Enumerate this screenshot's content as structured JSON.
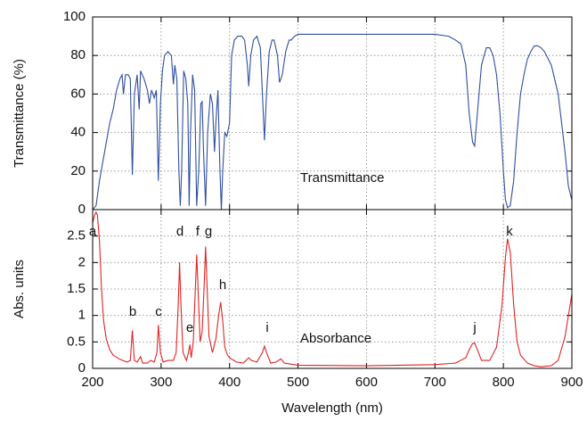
{
  "chart_data": [
    {
      "type": "line",
      "ylabel": "Transmittance (%)",
      "xlim": [
        200,
        900
      ],
      "ylim": [
        0,
        100
      ],
      "yticks": [
        0,
        20,
        40,
        60,
        80,
        100
      ],
      "grid": true,
      "x": [
        200,
        205,
        210,
        215,
        220,
        225,
        230,
        235,
        240,
        243,
        245,
        248,
        252,
        255,
        258,
        261,
        265,
        268,
        270,
        275,
        280,
        283,
        286,
        290,
        293,
        296,
        299,
        302,
        305,
        310,
        315,
        318,
        320,
        323,
        326,
        328,
        330,
        333,
        336,
        339,
        341,
        343,
        346,
        349,
        352,
        355,
        358,
        360,
        362,
        365,
        368,
        372,
        375,
        378,
        380,
        383,
        386,
        388,
        390,
        393,
        396,
        400,
        403,
        407,
        412,
        418,
        422,
        426,
        428,
        431,
        435,
        440,
        445,
        448,
        451,
        454,
        458,
        462,
        465,
        470,
        473,
        477,
        482,
        487,
        490,
        495,
        500,
        550,
        600,
        650,
        700,
        720,
        730,
        738,
        745,
        750,
        755,
        758,
        762,
        768,
        775,
        780,
        785,
        790,
        795,
        800,
        803,
        806,
        810,
        815,
        820,
        825,
        830,
        835,
        840,
        845,
        850,
        855,
        860,
        870,
        880,
        890,
        895,
        900
      ],
      "series": [
        {
          "name": "Transmittance",
          "color": "#2f4f9f",
          "values": [
            0,
            2,
            15,
            25,
            35,
            45,
            52,
            62,
            68,
            70,
            60,
            70,
            70,
            68,
            18,
            60,
            70,
            52,
            72,
            68,
            62,
            55,
            62,
            58,
            62,
            15,
            55,
            72,
            80,
            82,
            80,
            65,
            75,
            68,
            20,
            2,
            20,
            72,
            68,
            55,
            2,
            40,
            70,
            62,
            2,
            20,
            55,
            56,
            30,
            2,
            40,
            60,
            55,
            30,
            45,
            62,
            20,
            0,
            20,
            40,
            38,
            45,
            80,
            88,
            90,
            90,
            88,
            75,
            64,
            80,
            88,
            90,
            84,
            60,
            36,
            60,
            82,
            88,
            88,
            80,
            66,
            70,
            82,
            88,
            88,
            90,
            91,
            91,
            91,
            91,
            91,
            90,
            88,
            86,
            75,
            50,
            35,
            33,
            50,
            75,
            84,
            84,
            80,
            70,
            50,
            20,
            5,
            1,
            2,
            15,
            40,
            60,
            70,
            78,
            82,
            85,
            85,
            84,
            82,
            75,
            60,
            30,
            12,
            5
          ]
        }
      ]
    },
    {
      "type": "line",
      "ylabel": "Abs. units",
      "xlabel": "Wavelength (nm)",
      "xlim": [
        200,
        900
      ],
      "ylim": [
        0,
        3
      ],
      "xticks": [
        200,
        300,
        400,
        500,
        600,
        700,
        800,
        900
      ],
      "yticks": [
        0,
        0.5,
        1,
        1.5,
        2,
        2.5
      ],
      "grid": true,
      "annotations": [
        "a",
        "b",
        "c",
        "d",
        "e",
        "f",
        "g",
        "h",
        "i",
        "j",
        "k"
      ],
      "x": [
        200,
        203,
        205,
        207,
        210,
        213,
        216,
        220,
        225,
        230,
        240,
        250,
        255,
        258,
        261,
        265,
        270,
        273,
        280,
        285,
        290,
        294,
        296,
        299,
        303,
        310,
        318,
        322,
        325,
        327,
        329,
        332,
        337,
        340,
        342,
        344,
        347,
        350,
        352,
        354,
        357,
        360,
        363,
        365,
        367,
        370,
        375,
        380,
        384,
        387,
        390,
        393,
        397,
        400,
        410,
        420,
        428,
        432,
        440,
        448,
        451,
        454,
        460,
        468,
        475,
        480,
        500,
        600,
        700,
        730,
        745,
        750,
        755,
        758,
        762,
        768,
        780,
        790,
        798,
        803,
        806,
        810,
        815,
        820,
        825,
        835,
        845,
        855,
        870,
        880,
        890,
        895,
        900
      ],
      "series": [
        {
          "name": "Absorbance",
          "color": "#e02424",
          "values": [
            2.75,
            2.9,
            2.95,
            2.9,
            2.4,
            1.5,
            0.9,
            0.55,
            0.35,
            0.25,
            0.17,
            0.12,
            0.15,
            0.72,
            0.15,
            0.12,
            0.22,
            0.1,
            0.1,
            0.15,
            0.12,
            0.3,
            0.82,
            0.3,
            0.12,
            0.15,
            0.15,
            0.3,
            1.2,
            2.0,
            1.2,
            0.3,
            0.15,
            0.3,
            0.45,
            0.2,
            0.5,
            1.5,
            2.15,
            1.5,
            0.5,
            0.7,
            1.6,
            2.3,
            1.6,
            0.6,
            0.3,
            0.55,
            1.0,
            1.25,
            0.9,
            0.4,
            0.25,
            0.2,
            0.12,
            0.1,
            0.2,
            0.15,
            0.12,
            0.3,
            0.42,
            0.3,
            0.1,
            0.12,
            0.18,
            0.1,
            0.06,
            0.05,
            0.07,
            0.1,
            0.2,
            0.35,
            0.47,
            0.48,
            0.35,
            0.15,
            0.15,
            0.4,
            1.2,
            2.1,
            2.45,
            2.2,
            1.2,
            0.5,
            0.25,
            0.1,
            0.05,
            0.03,
            0.05,
            0.15,
            0.6,
            1.0,
            1.4
          ]
        }
      ]
    }
  ]
}
